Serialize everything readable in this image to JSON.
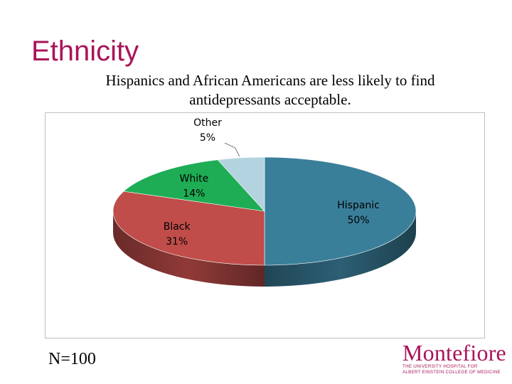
{
  "slide": {
    "title": "Ethnicity",
    "subtitle_line1": "Hispanics and African Americans are less likely to find",
    "subtitle_line2": "antidepressants acceptable.",
    "sample_size": "N=100"
  },
  "chart_data": {
    "type": "pie",
    "categories": [
      "Hispanic",
      "Black",
      "White",
      "Other"
    ],
    "values": [
      50,
      31,
      14,
      5
    ],
    "value_labels": [
      "50%",
      "31%",
      "14%",
      "5%"
    ],
    "colors": [
      "#3a7f9a",
      "#c04d4a",
      "#1ead55",
      "#b3d3e0"
    ],
    "three_d": true
  },
  "logo": {
    "name": "Montefiore",
    "tagline1": "THE UNIVERSITY HOSPITAL FOR",
    "tagline2": "ALBERT EINSTEIN COLLEGE OF MEDICINE"
  },
  "colors": {
    "title": "#a8155a",
    "frame_border": "#bfbfbf"
  }
}
